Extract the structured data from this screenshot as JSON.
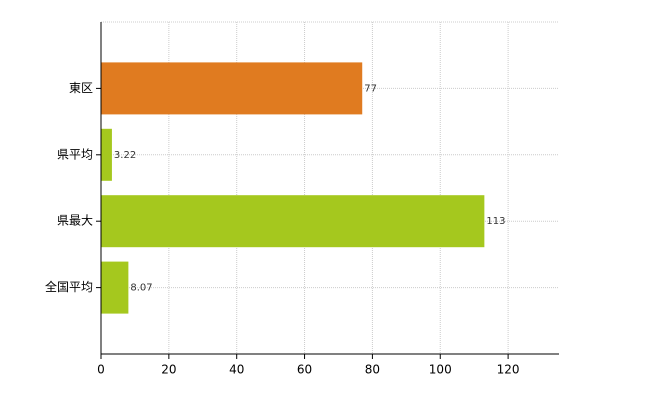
{
  "chart_data": {
    "type": "bar",
    "orientation": "horizontal",
    "categories": [
      "東区",
      "県平均",
      "県最大",
      "全国平均"
    ],
    "values": [
      77,
      3.22,
      113,
      8.07
    ],
    "colors": [
      "#e07b20",
      "#a5c81e",
      "#a5c81e",
      "#a5c81e"
    ],
    "xlim": [
      0,
      135
    ],
    "xticks": [
      0,
      20,
      40,
      60,
      80,
      100,
      120
    ],
    "grid": true
  }
}
